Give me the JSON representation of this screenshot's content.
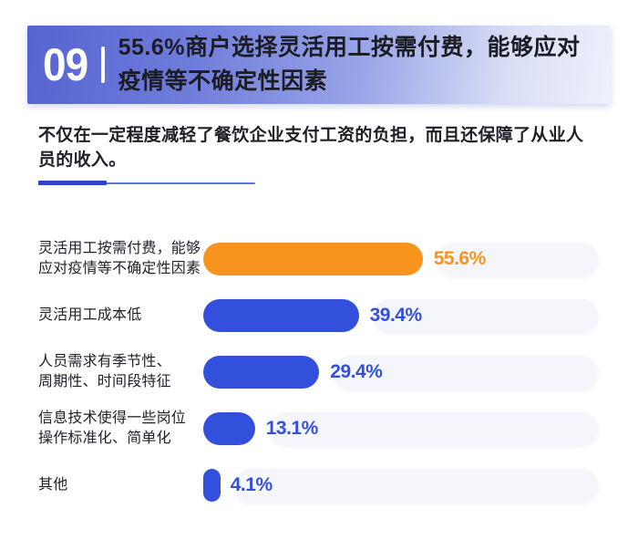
{
  "colors": {
    "accent_blue": "#3350dc",
    "accent_orange": "#f7941e",
    "banner_gradient_start": "#5663d2",
    "banner_gradient_end": "#eef1fb",
    "track_background": "#f5f6fc",
    "text_dark": "#1f1f28"
  },
  "header": {
    "number": "09",
    "title_line1": "55.6%商户选择灵活用工按需付费，能够应对",
    "title_line2": "疫情等不确定性因素"
  },
  "intro": {
    "text": "不仅在一定程度减轻了餐饮企业支付工资的负担，而且还保障了从业人员的收入。"
  },
  "chart_data": {
    "type": "bar",
    "orientation": "horizontal",
    "title": "55.6%商户选择灵活用工按需付费，能够应对疫情等不确定性因素",
    "xlabel": "",
    "ylabel": "",
    "xlim": [
      0,
      100
    ],
    "grid": false,
    "legend": false,
    "categories": [
      "灵活用工按需付费，能够应对疫情等不确定性因素",
      "灵活用工成本低",
      "人员需求有季节性、周期性、时间段特征",
      "信息技术使得一些岗位操作标准化、简单化",
      "其他"
    ],
    "values": [
      55.6,
      39.4,
      29.4,
      13.1,
      4.1
    ],
    "rows": [
      {
        "label_lines": [
          "灵活用工按需付费，能够",
          "应对疫情等不确定性因素"
        ],
        "value": 55.6,
        "value_label": "55.6%",
        "color": "#f7941e"
      },
      {
        "label_lines": [
          "灵活用工成本低"
        ],
        "value": 39.4,
        "value_label": "39.4%",
        "color": "#3350dc"
      },
      {
        "label_lines": [
          "人员需求有季节性、",
          "周期性、时间段特征"
        ],
        "value": 29.4,
        "value_label": "29.4%",
        "color": "#3350dc"
      },
      {
        "label_lines": [
          "信息技术使得一些岗位",
          "操作标准化、简单化"
        ],
        "value": 13.1,
        "value_label": "13.1%",
        "color": "#3350dc"
      },
      {
        "label_lines": [
          "其他"
        ],
        "value": 4.1,
        "value_label": "4.1%",
        "color": "#3350dc"
      }
    ]
  }
}
